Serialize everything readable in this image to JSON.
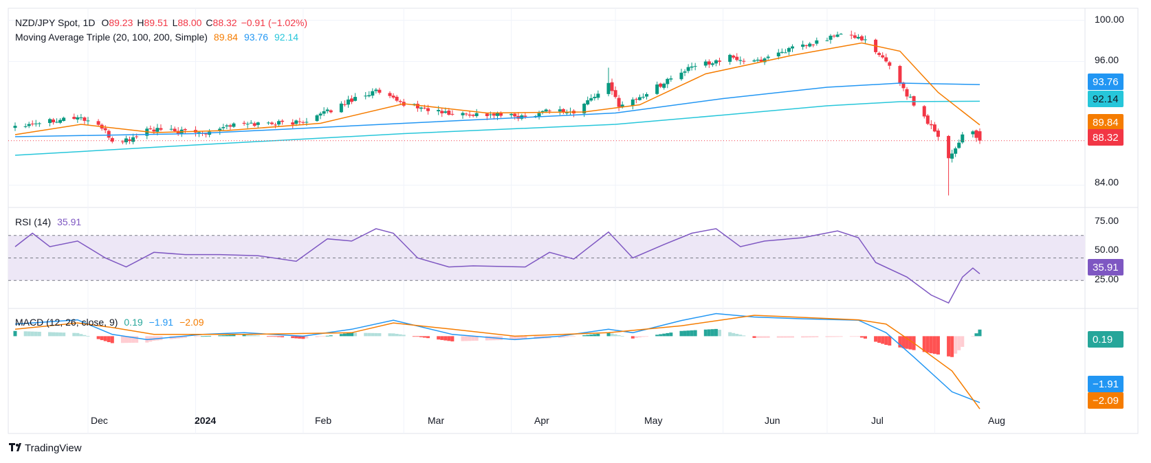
{
  "colors": {
    "up": "#089981",
    "down": "#f23645",
    "sma20": "#f57c00",
    "sma100": "#2196f3",
    "sma200": "#26c6da",
    "rsi": "#7e57c2",
    "rsi_band": "#ede7f6",
    "macd": "#2196f3",
    "signal": "#f57c00",
    "hist_up_strong": "#26a69a",
    "hist_up_weak": "#b2dfdb",
    "hist_down_strong": "#ff5252",
    "hist_down_weak": "#ffcdd2",
    "last_price": "#f23645",
    "grid": "#f0f3fa"
  },
  "main_legend": {
    "symbol": "NZD/JPY Spot, 1D",
    "o_label": "O",
    "open": "89.23",
    "h_label": "H",
    "high": "89.51",
    "l_label": "L",
    "low": "88.00",
    "c_label": "C",
    "close": "88.32",
    "change": "−0.91 (−1.02%)"
  },
  "ma_legend": {
    "name": "Moving Average Triple (20, 100, 200, Simple)",
    "v20": "89.84",
    "v100": "93.76",
    "v200": "92.14"
  },
  "rsi_legend": {
    "name": "RSI (14)",
    "value": "35.91"
  },
  "macd_legend": {
    "name": "MACD (12, 26, close, 9)",
    "hist": "0.19",
    "macd": "−1.91",
    "signal": "−2.09"
  },
  "badges": {
    "sma100": "93.76",
    "sma200": "92.14",
    "sma20": "89.84",
    "price": "88.32",
    "rsi": "35.91",
    "hist": "0.19",
    "macd": "−1.91",
    "signal": "−2.09"
  },
  "axis_ticks": {
    "price": [
      "100.00",
      "96.00",
      "84.00"
    ],
    "rsi": [
      "75.00",
      "50.00",
      "25.00"
    ],
    "months": [
      "Dec",
      "2024",
      "Feb",
      "Mar",
      "Apr",
      "May",
      "Jun",
      "Jul",
      "Aug"
    ]
  },
  "footer": {
    "brand": "TradingView"
  },
  "chart_data": [
    {
      "type": "candlestick",
      "title": "NZD/JPY Spot, 1D",
      "x_range": [
        "2023-11-10",
        "2024-08-14"
      ],
      "ylim": [
        82.5,
        100.5
      ],
      "ticks": [
        100,
        96,
        84
      ],
      "last_ohlc": [
        89.23,
        89.51,
        88.0,
        88.32
      ],
      "close_path": [
        [
          "2023-11-10",
          89.8
        ],
        [
          "2023-11-20",
          90.3
        ],
        [
          "2023-11-28",
          90.6
        ],
        [
          "2023-12-04",
          89.9
        ],
        [
          "2023-12-08",
          88.3
        ],
        [
          "2023-12-13",
          88.4
        ],
        [
          "2023-12-18",
          89.4
        ],
        [
          "2023-12-27",
          89.2
        ],
        [
          "2024-01-03",
          89.1
        ],
        [
          "2024-01-10",
          89.8
        ],
        [
          "2024-01-20",
          90.0
        ],
        [
          "2024-01-31",
          90.1
        ],
        [
          "2024-02-08",
          91.1
        ],
        [
          "2024-02-16",
          92.5
        ],
        [
          "2024-02-22",
          93.1
        ],
        [
          "2024-02-28",
          92.1
        ],
        [
          "2024-03-06",
          91.5
        ],
        [
          "2024-03-14",
          90.9
        ],
        [
          "2024-03-21",
          90.9
        ],
        [
          "2024-03-28",
          90.8
        ],
        [
          "2024-04-05",
          90.6
        ],
        [
          "2024-04-12",
          91.4
        ],
        [
          "2024-04-19",
          91.0
        ],
        [
          "2024-04-26",
          93.0
        ],
        [
          "2024-04-29",
          93.7
        ],
        [
          "2024-05-02",
          91.8
        ],
        [
          "2024-05-08",
          92.5
        ],
        [
          "2024-05-16",
          94.2
        ],
        [
          "2024-05-24",
          95.6
        ],
        [
          "2024-06-03",
          96.4
        ],
        [
          "2024-06-10",
          95.9
        ],
        [
          "2024-06-18",
          97.0
        ],
        [
          "2024-06-26",
          97.6
        ],
        [
          "2024-07-04",
          98.6
        ],
        [
          "2024-07-11",
          98.3
        ],
        [
          "2024-07-15",
          96.8
        ],
        [
          "2024-07-19",
          95.7
        ],
        [
          "2024-07-24",
          92.8
        ],
        [
          "2024-07-29",
          90.6
        ],
        [
          "2024-08-02",
          88.9
        ],
        [
          "2024-08-05",
          86.6
        ],
        [
          "2024-08-07",
          87.6
        ],
        [
          "2024-08-09",
          88.9
        ],
        [
          "2024-08-12",
          89.2
        ],
        [
          "2024-08-14",
          88.32
        ]
      ],
      "events": [
        {
          "date": "2024-04-29",
          "high": 95.4
        },
        {
          "date": "2024-08-05",
          "low": 83.0
        }
      ],
      "series": [
        {
          "name": "SMA 20",
          "last": 89.84,
          "points": [
            [
              "2023-11-10",
              88.9
            ],
            [
              "2023-11-29",
              89.9
            ],
            [
              "2023-12-20",
              89.1
            ],
            [
              "2024-01-10",
              89.3
            ],
            [
              "2024-02-06",
              90.0
            ],
            [
              "2024-03-01",
              91.9
            ],
            [
              "2024-03-25",
              91.0
            ],
            [
              "2024-04-22",
              91.1
            ],
            [
              "2024-05-08",
              91.8
            ],
            [
              "2024-05-27",
              94.8
            ],
            [
              "2024-06-21",
              96.6
            ],
            [
              "2024-07-11",
              97.8
            ],
            [
              "2024-07-22",
              97.0
            ],
            [
              "2024-08-02",
              93.0
            ],
            [
              "2024-08-14",
              89.84
            ]
          ]
        },
        {
          "name": "SMA 100",
          "last": 93.76,
          "points": [
            [
              "2023-11-10",
              88.7
            ],
            [
              "2024-01-01",
              89.0
            ],
            [
              "2024-03-01",
              90.0
            ],
            [
              "2024-05-01",
              91.0
            ],
            [
              "2024-06-01",
              92.4
            ],
            [
              "2024-07-01",
              93.5
            ],
            [
              "2024-07-22",
              93.9
            ],
            [
              "2024-08-14",
              93.76
            ]
          ]
        },
        {
          "name": "SMA 200",
          "last": 92.14,
          "points": [
            [
              "2023-11-10",
              86.9
            ],
            [
              "2024-01-01",
              87.9
            ],
            [
              "2024-03-01",
              89.0
            ],
            [
              "2024-05-01",
              89.9
            ],
            [
              "2024-06-01",
              90.8
            ],
            [
              "2024-07-01",
              91.7
            ],
            [
              "2024-07-22",
              92.1
            ],
            [
              "2024-08-14",
              92.14
            ]
          ]
        }
      ]
    },
    {
      "type": "line",
      "title": "RSI (14)",
      "ylim": [
        10,
        90
      ],
      "levels": [
        70,
        50,
        30
      ],
      "ticks": [
        75,
        50,
        25
      ],
      "series": [
        {
          "name": "RSI",
          "last": 35.91,
          "points": [
            [
              "2023-11-10",
              60
            ],
            [
              "2023-11-15",
              72
            ],
            [
              "2023-11-20",
              60
            ],
            [
              "2023-11-28",
              65
            ],
            [
              "2023-12-06",
              50
            ],
            [
              "2023-12-12",
              42
            ],
            [
              "2023-12-20",
              55
            ],
            [
              "2023-12-29",
              53
            ],
            [
              "2024-01-08",
              53
            ],
            [
              "2024-01-19",
              52
            ],
            [
              "2024-01-30",
              47
            ],
            [
              "2024-02-08",
              67
            ],
            [
              "2024-02-15",
              65
            ],
            [
              "2024-02-22",
              76
            ],
            [
              "2024-02-27",
              72
            ],
            [
              "2024-03-05",
              50
            ],
            [
              "2024-03-14",
              42
            ],
            [
              "2024-03-21",
              43
            ],
            [
              "2024-04-05",
              42
            ],
            [
              "2024-04-12",
              55
            ],
            [
              "2024-04-19",
              49
            ],
            [
              "2024-04-29",
              73
            ],
            [
              "2024-05-06",
              50
            ],
            [
              "2024-05-15",
              62
            ],
            [
              "2024-05-23",
              72
            ],
            [
              "2024-05-30",
              76
            ],
            [
              "2024-06-06",
              60
            ],
            [
              "2024-06-13",
              65
            ],
            [
              "2024-06-24",
              68
            ],
            [
              "2024-07-04",
              74
            ],
            [
              "2024-07-10",
              68
            ],
            [
              "2024-07-15",
              46
            ],
            [
              "2024-07-24",
              33
            ],
            [
              "2024-07-31",
              17
            ],
            [
              "2024-08-05",
              10
            ],
            [
              "2024-08-09",
              33
            ],
            [
              "2024-08-12",
              41
            ],
            [
              "2024-08-14",
              35.91
            ]
          ]
        }
      ]
    },
    {
      "type": "bar+line",
      "title": "MACD (12, 26, close, 9)",
      "ylim": [
        -2.6,
        0.6
      ],
      "series": [
        {
          "name": "MACD",
          "last": -1.91,
          "points": [
            [
              "2023-11-10",
              0.35
            ],
            [
              "2023-11-28",
              0.47
            ],
            [
              "2023-12-08",
              0.05
            ],
            [
              "2023-12-18",
              -0.1
            ],
            [
              "2024-01-03",
              0.05
            ],
            [
              "2024-01-15",
              0.1
            ],
            [
              "2024-02-01",
              0.0
            ],
            [
              "2024-02-15",
              0.2
            ],
            [
              "2024-02-27",
              0.46
            ],
            [
              "2024-03-15",
              0.05
            ],
            [
              "2024-04-02",
              -0.1
            ],
            [
              "2024-04-15",
              0.0
            ],
            [
              "2024-04-29",
              0.2
            ],
            [
              "2024-05-06",
              0.1
            ],
            [
              "2024-05-20",
              0.45
            ],
            [
              "2024-05-30",
              0.65
            ],
            [
              "2024-06-10",
              0.55
            ],
            [
              "2024-06-24",
              0.5
            ],
            [
              "2024-07-10",
              0.46
            ],
            [
              "2024-07-18",
              0.1
            ],
            [
              "2024-07-26",
              -0.6
            ],
            [
              "2024-08-06",
              -1.6
            ],
            [
              "2024-08-14",
              -1.91
            ]
          ]
        },
        {
          "name": "Signal",
          "last": -2.09,
          "points": [
            [
              "2023-11-10",
              0.2
            ],
            [
              "2023-11-28",
              0.38
            ],
            [
              "2023-12-08",
              0.25
            ],
            [
              "2023-12-20",
              0.05
            ],
            [
              "2024-01-15",
              0.05
            ],
            [
              "2024-02-15",
              0.1
            ],
            [
              "2024-02-27",
              0.38
            ],
            [
              "2024-03-15",
              0.2
            ],
            [
              "2024-04-02",
              0.0
            ],
            [
              "2024-04-29",
              0.1
            ],
            [
              "2024-05-20",
              0.3
            ],
            [
              "2024-06-10",
              0.6
            ],
            [
              "2024-07-10",
              0.47
            ],
            [
              "2024-07-18",
              0.35
            ],
            [
              "2024-07-26",
              -0.2
            ],
            [
              "2024-08-06",
              -1.0
            ],
            [
              "2024-08-14",
              -2.09
            ]
          ]
        }
      ],
      "histogram_last": 0.19
    }
  ]
}
